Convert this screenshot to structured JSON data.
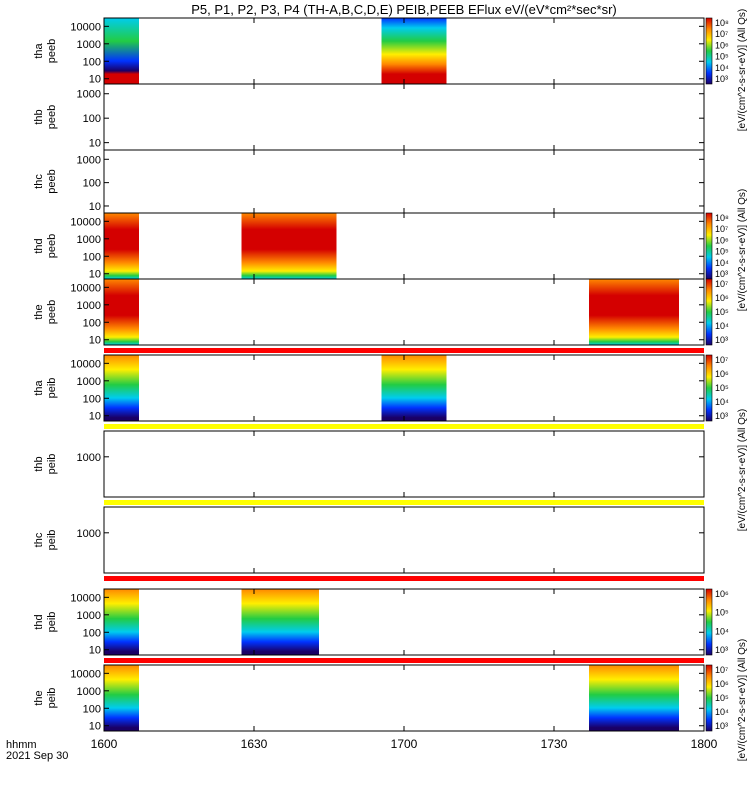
{
  "title": "P5, P1, P2, P3, P4 (TH-A,B,C,D,E) PEIB,PEEB EFlux eV/(eV*cm²*sec*sr)",
  "footer": {
    "time_label": "hhmm",
    "date_label": "2021 Sep 30"
  },
  "colorbar_units": {
    "a": "[eV/(cm^2-s-sr-eV)] (All Qs)",
    "b": "[eV/(cm^2-s-sr-eV)] (All Qs)",
    "c": "[eV/(cm^2-s-sr-eV)] (All Qs)",
    "d": "[eV/(cm^2-s-sr-eV)] (All Qs)"
  },
  "chart_data": {
    "type": "heatmap",
    "x_ticks": [
      "1600",
      "1630",
      "1700",
      "1730",
      "1800"
    ],
    "xlim": [
      0,
      120
    ],
    "y_scale": "log",
    "colors": {
      "high": "#d40000",
      "orange": "#ff8800",
      "yellow": "#ffee00",
      "green": "#22cc44",
      "cyan": "#00ccee",
      "blue": "#0033ff",
      "low": "#1a0066",
      "band_red": "#ff0000",
      "band_yellow": "#ffff00"
    },
    "panels": [
      {
        "ylabel": [
          "tha",
          "peeb"
        ],
        "yticks": [
          "10000",
          "1000",
          "100",
          "10"
        ],
        "ylim": [
          5,
          30000
        ],
        "blocks": [
          {
            "x": [
              0,
              7
            ],
            "style": "cool"
          },
          {
            "x": [
              55.5,
              68.5
            ],
            "style": "rainbow"
          }
        ],
        "colorbar": {
          "ticks": [
            "10⁸",
            "10⁷",
            "10⁶",
            "10⁵",
            "10⁴",
            "10³"
          ]
        }
      },
      {
        "ylabel": [
          "thb",
          "peeb"
        ],
        "yticks": [
          "1000",
          "100",
          "10"
        ],
        "ylim": [
          5,
          2500
        ],
        "blocks": []
      },
      {
        "ylabel": [
          "thc",
          "peeb"
        ],
        "yticks": [
          "1000",
          "100",
          "10"
        ],
        "ylim": [
          5,
          2500
        ],
        "blocks": []
      },
      {
        "ylabel": [
          "thd",
          "peeb"
        ],
        "yticks": [
          "10000",
          "1000",
          "100",
          "10"
        ],
        "ylim": [
          5,
          30000
        ],
        "blocks": [
          {
            "x": [
              0,
              7
            ],
            "style": "hot"
          },
          {
            "x": [
              27.5,
              46.5
            ],
            "style": "hot"
          }
        ],
        "colorbar": {
          "ticks": [
            "10⁸",
            "10⁷",
            "10⁶",
            "10⁵",
            "10⁴",
            "10³"
          ]
        }
      },
      {
        "ylabel": [
          "the",
          "peeb"
        ],
        "yticks": [
          "10000",
          "1000",
          "100",
          "10"
        ],
        "ylim": [
          5,
          30000
        ],
        "blocks": [
          {
            "x": [
              0,
              7
            ],
            "style": "hot"
          },
          {
            "x": [
              97,
              115
            ],
            "style": "hot"
          }
        ],
        "colorbar": {
          "ticks": [
            "10⁷",
            "10⁶",
            "10⁵",
            "10⁴",
            "10³"
          ]
        }
      },
      {
        "ylabel": [
          "tha",
          "peib"
        ],
        "yticks": [
          "10000",
          "1000",
          "100",
          "10"
        ],
        "ylim": [
          5,
          30000
        ],
        "blocks": [
          {
            "x": [
              0,
              7
            ],
            "style": "ion"
          },
          {
            "x": [
              55.5,
              68.5
            ],
            "style": "ion"
          }
        ],
        "colorbar": {
          "ticks": [
            "10⁷",
            "10⁶",
            "10⁵",
            "10⁴",
            "10³"
          ]
        }
      },
      {
        "ylabel": [
          "thb",
          "peib"
        ],
        "yticks": [
          "1000"
        ],
        "ylim": [
          5,
          30000
        ],
        "blocks": []
      },
      {
        "ylabel": [
          "thc",
          "peib"
        ],
        "yticks": [
          "1000"
        ],
        "ylim": [
          5,
          30000
        ],
        "blocks": []
      },
      {
        "ylabel": [
          "thd",
          "peib"
        ],
        "yticks": [
          "10000",
          "1000",
          "100",
          "10"
        ],
        "ylim": [
          5,
          30000
        ],
        "blocks": [
          {
            "x": [
              0,
              7
            ],
            "style": "ion"
          },
          {
            "x": [
              27.5,
              43
            ],
            "style": "ion"
          }
        ],
        "colorbar": {
          "ticks": [
            "10⁶",
            "10⁵",
            "10⁴",
            "10³"
          ]
        }
      },
      {
        "ylabel": [
          "the",
          "peib"
        ],
        "yticks": [
          "10000",
          "1000",
          "100",
          "10"
        ],
        "ylim": [
          5,
          30000
        ],
        "blocks": [
          {
            "x": [
              0,
              7
            ],
            "style": "ion"
          },
          {
            "x": [
              97,
              115
            ],
            "style": "ion"
          }
        ],
        "colorbar": {
          "ticks": [
            "10⁷",
            "10⁶",
            "10⁵",
            "10⁴",
            "10³"
          ]
        }
      }
    ],
    "separator_bands": [
      {
        "after_panel": 5,
        "color": "red"
      },
      {
        "after_panel": 6,
        "color": "yellow"
      },
      {
        "after_panel": 7,
        "color": "yellow"
      },
      {
        "after_panel": 8,
        "color": "red"
      },
      {
        "after_panel": 9,
        "color": "red"
      }
    ]
  }
}
